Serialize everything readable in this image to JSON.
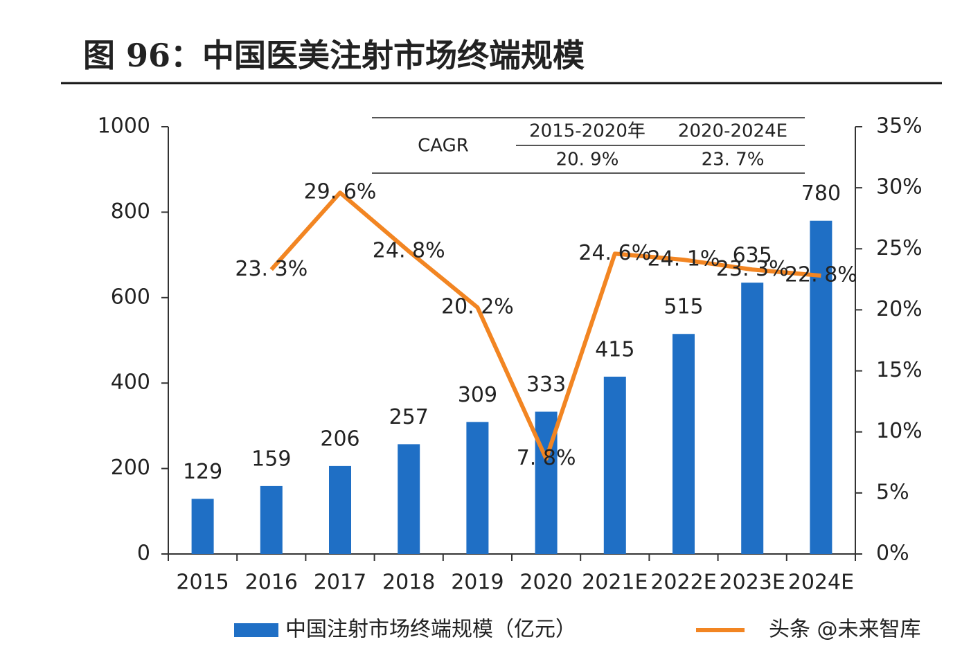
{
  "chart_data": {
    "type": "bar-line",
    "title": "图 96：中国医美注射市场终端规模",
    "categories": [
      "2015",
      "2016",
      "2017",
      "2018",
      "2019",
      "2020",
      "2021E",
      "2022E",
      "2023E",
      "2024E"
    ],
    "series": [
      {
        "name": "中国注射市场终端规模（亿元）",
        "type": "bar",
        "color": "#1f6fc5",
        "values": [
          129,
          159,
          206,
          257,
          309,
          333,
          415,
          515,
          635,
          780
        ]
      },
      {
        "type": "line",
        "axis": "y2",
        "color": "#f28522",
        "values": [
          null,
          23.3,
          29.6,
          24.8,
          20.2,
          7.8,
          24.6,
          24.1,
          23.3,
          22.8
        ],
        "value_labels": [
          null,
          "23. 3%",
          "29. 6%",
          "24. 8%",
          "20. 2%",
          "7. 8%",
          "24. 6%",
          "24. 1%",
          "23. 3%",
          "22. 8%"
        ]
      }
    ],
    "ylim": [
      0,
      1000
    ],
    "yticks": [
      0,
      200,
      400,
      600,
      800,
      1000
    ],
    "y2lim": [
      0,
      35
    ],
    "y2ticks": [
      {
        "value": 0,
        "label": "0%"
      },
      {
        "value": 5,
        "label": "5%"
      },
      {
        "value": 10,
        "label": "10%"
      },
      {
        "value": 15,
        "label": "15%"
      },
      {
        "value": 20,
        "label": "20%"
      },
      {
        "value": 25,
        "label": "25%"
      },
      {
        "value": 30,
        "label": "30%"
      },
      {
        "value": 35,
        "label": "35%"
      }
    ],
    "cagr_table": {
      "header": "CAGR",
      "periods": [
        "2015-2020年",
        "2020-2024E"
      ],
      "rates": [
        "20. 9%",
        "23. 7%"
      ]
    },
    "watermark": "头条 @未来智库"
  }
}
